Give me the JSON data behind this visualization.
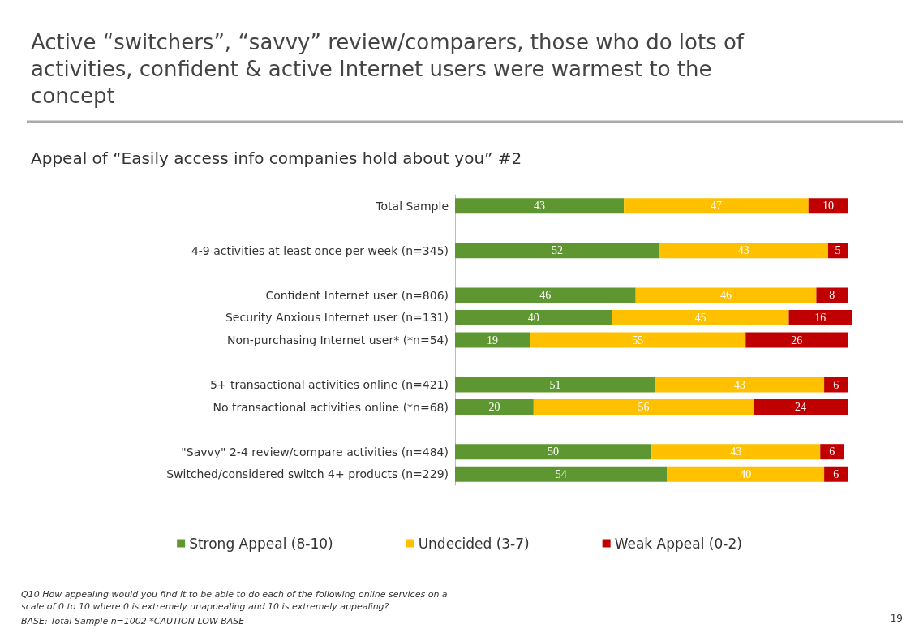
{
  "chart_data": {
    "type": "bar",
    "orientation": "horizontal",
    "stacked": true,
    "data_labels": true,
    "legend": "bottom",
    "title": "Active “switchers”, “savvy” review/comparers, those who do lots of activities, confident & active Internet users were warmest to the concept",
    "subtitle": "Appeal of “Easily access info companies hold about you” #2",
    "categories": [
      "Total Sample",
      null,
      "4-9 activities at least once per week (n=345)",
      null,
      "Confident Internet user (n=806)",
      "Security Anxious Internet user (n=131)",
      "Non-purchasing Internet user* (*n=54)",
      null,
      "5+ transactional activities online (n=421)",
      "No transactional activities online (*n=68)",
      null,
      "\"Savvy\" 2-4 review/compare activities (n=484)",
      "Switched/considered switch 4+ products (n=229)"
    ],
    "series": [
      {
        "name": "Strong Appeal (8-10)",
        "color": "#5e9732",
        "values": [
          43,
          null,
          52,
          null,
          46,
          40,
          19,
          null,
          51,
          20,
          null,
          50,
          54
        ]
      },
      {
        "name": "Undecided (3-7)",
        "color": "#ffc000",
        "values": [
          47,
          null,
          43,
          null,
          46,
          45,
          55,
          null,
          43,
          56,
          null,
          43,
          40
        ]
      },
      {
        "name": "Weak Appeal (0-2)",
        "color": "#c00000",
        "values": [
          10,
          null,
          5,
          null,
          8,
          16,
          26,
          null,
          6,
          24,
          null,
          6,
          6
        ]
      }
    ],
    "annotations": [
      "Q10 How appealing would you find it to be able to do each of the following online services on a scale of 0 to 10 where 0 is extremely unappealing and 10 is extremely appealing?",
      "BASE: Total Sample n=1002 *CAUTION LOW BASE",
      "19"
    ]
  }
}
